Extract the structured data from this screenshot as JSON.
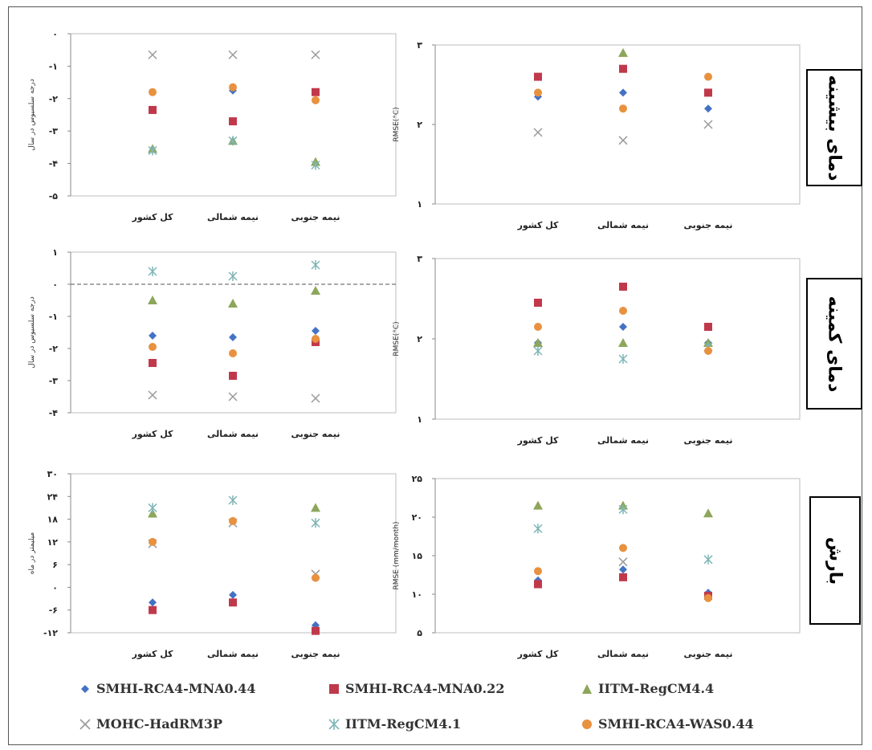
{
  "legend": [
    {
      "name": "SMHI-RCA4-MNA0.44",
      "color": "#4472C4",
      "marker": "diamond"
    },
    {
      "name": "SMHI-RCA4-MNA0.22",
      "color": "#C0394B",
      "marker": "square"
    },
    {
      "name": "IITM-RegCM4.4",
      "color": "#8DA65A",
      "marker": "triangle"
    },
    {
      "name": "MOHC-HadRM3P",
      "color": "#9A9A9A",
      "marker": "x"
    },
    {
      "name": "IITM-RegCM4.1",
      "color": "#7FB6B6",
      "marker": "star"
    },
    {
      "name": "SMHI-RCA4-WAS0.44",
      "color": "#E8913F",
      "marker": "circle"
    }
  ],
  "row_labels": [
    "دمای بیشینه",
    "دمای کمینه",
    "بارش"
  ],
  "chart_data": [
    {
      "type": "scatter",
      "row": 0,
      "side": "left",
      "categories": [
        "کل کشور",
        "نیمه شمالی",
        "نیمه جنوبی"
      ],
      "ylabel": "درجه سلسیوس در سال",
      "ylim": [
        -5,
        0
      ],
      "yticks": [
        0,
        -1,
        -2,
        -3,
        -4,
        -5
      ],
      "ytick_labels": [
        "۰",
        "-۱",
        "-۲",
        "-۳",
        "-۴",
        "-۵"
      ],
      "series": [
        {
          "name": "SMHI-RCA4-MNA0.44",
          "values": [
            -1.8,
            -1.75,
            -1.8
          ]
        },
        {
          "name": "SMHI-RCA4-MNA0.22",
          "values": [
            -2.35,
            -2.7,
            -1.8
          ]
        },
        {
          "name": "IITM-RegCM4.4",
          "values": [
            -3.55,
            -3.3,
            -3.95
          ]
        },
        {
          "name": "MOHC-HadRM3P",
          "values": [
            -0.65,
            -0.65,
            -0.65
          ]
        },
        {
          "name": "IITM-RegCM4.1",
          "values": [
            -3.6,
            -3.3,
            -4.05
          ]
        },
        {
          "name": "SMHI-RCA4-WAS0.44",
          "values": [
            -1.8,
            -1.65,
            -2.05
          ]
        }
      ]
    },
    {
      "type": "scatter",
      "row": 0,
      "side": "right",
      "categories": [
        "کل کشور",
        "نیمه شمالی",
        "نیمه جنوبی"
      ],
      "ylabel": "RMSE(°C)",
      "ylim": [
        1,
        3
      ],
      "yticks": [
        1,
        2,
        3
      ],
      "ytick_labels": [
        "۱",
        "۲",
        "۳"
      ],
      "series": [
        {
          "name": "SMHI-RCA4-MNA0.44",
          "values": [
            2.35,
            2.4,
            2.2
          ]
        },
        {
          "name": "SMHI-RCA4-MNA0.22",
          "values": [
            2.6,
            2.7,
            2.4
          ]
        },
        {
          "name": "IITM-RegCM4.4",
          "values": [
            null,
            2.9,
            null
          ]
        },
        {
          "name": "MOHC-HadRM3P",
          "values": [
            1.9,
            1.8,
            2.0
          ]
        },
        {
          "name": "IITM-RegCM4.1",
          "values": [
            null,
            null,
            null
          ]
        },
        {
          "name": "SMHI-RCA4-WAS0.44",
          "values": [
            2.4,
            2.2,
            2.6
          ]
        }
      ]
    },
    {
      "type": "scatter",
      "row": 1,
      "side": "left",
      "categories": [
        "کل کشور",
        "نیمه شمالی",
        "نیمه جنوبی"
      ],
      "ylabel": "درجه سلسیوس در سال",
      "ylim": [
        -4,
        1
      ],
      "yticks": [
        1,
        0,
        -1,
        -2,
        -3,
        -4
      ],
      "ytick_labels": [
        "۱",
        "۰",
        "-۱",
        "-۲",
        "-۳",
        "-۴"
      ],
      "series": [
        {
          "name": "SMHI-RCA4-MNA0.44",
          "values": [
            -1.6,
            -1.65,
            -1.45
          ]
        },
        {
          "name": "SMHI-RCA4-MNA0.22",
          "values": [
            -2.45,
            -2.85,
            -1.8
          ]
        },
        {
          "name": "IITM-RegCM4.4",
          "values": [
            -0.5,
            -0.6,
            -0.2
          ]
        },
        {
          "name": "MOHC-HadRM3P",
          "values": [
            -3.45,
            -3.5,
            -3.55
          ]
        },
        {
          "name": "IITM-RegCM4.1",
          "values": [
            0.4,
            0.25,
            0.6
          ]
        },
        {
          "name": "SMHI-RCA4-WAS0.44",
          "values": [
            -1.95,
            -2.15,
            -1.7
          ]
        }
      ]
    },
    {
      "type": "scatter",
      "row": 1,
      "side": "right",
      "categories": [
        "کل کشور",
        "نیمه شمالی",
        "نیمه جنوبی"
      ],
      "ylabel": "RMSE(°C)",
      "ylim": [
        1,
        3
      ],
      "yticks": [
        1,
        2,
        3
      ],
      "ytick_labels": [
        "۱",
        "۲",
        "۳"
      ],
      "series": [
        {
          "name": "SMHI-RCA4-MNA0.44",
          "values": [
            1.95,
            2.15,
            1.95
          ]
        },
        {
          "name": "SMHI-RCA4-MNA0.22",
          "values": [
            2.45,
            2.65,
            2.15
          ]
        },
        {
          "name": "IITM-RegCM4.4",
          "values": [
            1.95,
            1.95,
            1.95
          ]
        },
        {
          "name": "MOHC-HadRM3P",
          "values": [
            null,
            null,
            null
          ]
        },
        {
          "name": "IITM-RegCM4.1",
          "values": [
            1.85,
            1.75,
            1.9
          ]
        },
        {
          "name": "SMHI-RCA4-WAS0.44",
          "values": [
            2.15,
            2.35,
            1.85
          ]
        }
      ]
    },
    {
      "type": "scatter",
      "row": 2,
      "side": "left",
      "categories": [
        "کل کشور",
        "نیمه شمالی",
        "نیمه جنوبی"
      ],
      "ylabel": "میلیمتر در ماه",
      "ylim": [
        -12,
        30
      ],
      "yticks": [
        30,
        24,
        18,
        12,
        6,
        0,
        -6,
        -12
      ],
      "ytick_labels": [
        "۳۰",
        "۲۴",
        "۱۸",
        "۱۲",
        "۶",
        "۰",
        "-۶",
        "-۱۲"
      ],
      "series": [
        {
          "name": "SMHI-RCA4-MNA0.44",
          "values": [
            -4,
            -2,
            -10
          ]
        },
        {
          "name": "SMHI-RCA4-MNA0.22",
          "values": [
            -6,
            -4,
            -11.5
          ]
        },
        {
          "name": "IITM-RegCM4.4",
          "values": [
            19.5,
            null,
            21
          ]
        },
        {
          "name": "MOHC-HadRM3P",
          "values": [
            11.5,
            17,
            3.5
          ]
        },
        {
          "name": "IITM-RegCM4.1",
          "values": [
            21,
            23,
            17
          ]
        },
        {
          "name": "SMHI-RCA4-WAS0.44",
          "values": [
            12,
            17.5,
            2.5
          ]
        }
      ]
    },
    {
      "type": "scatter",
      "row": 2,
      "side": "right",
      "categories": [
        "کل کشور",
        "نیمه شمالی",
        "نیمه جنوبی"
      ],
      "ylabel": "RMSE (mm/month)",
      "ylim": [
        5,
        25
      ],
      "yticks": [
        5,
        10,
        15,
        20,
        25
      ],
      "ytick_labels": [
        "۵",
        "۱۰",
        "۱۵",
        "۲۰",
        "۲۵"
      ],
      "series": [
        {
          "name": "SMHI-RCA4-MNA0.44",
          "values": [
            11.8,
            13.2,
            10.2
          ]
        },
        {
          "name": "SMHI-RCA4-MNA0.22",
          "values": [
            11.3,
            12.2,
            9.8
          ]
        },
        {
          "name": "IITM-RegCM4.4",
          "values": [
            21.5,
            21.5,
            20.5
          ]
        },
        {
          "name": "MOHC-HadRM3P",
          "values": [
            null,
            14.2,
            null
          ]
        },
        {
          "name": "IITM-RegCM4.1",
          "values": [
            18.5,
            21,
            14.5
          ]
        },
        {
          "name": "SMHI-RCA4-WAS0.44",
          "values": [
            13,
            16,
            9.5
          ]
        }
      ]
    }
  ]
}
